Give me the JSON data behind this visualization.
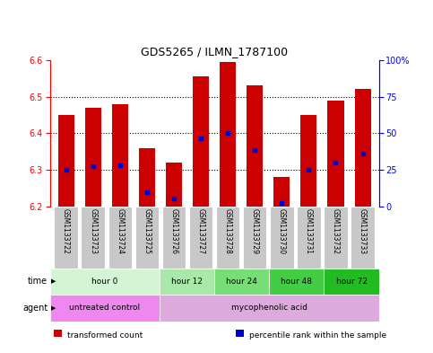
{
  "title": "GDS5265 / ILMN_1787100",
  "samples": [
    "GSM1133722",
    "GSM1133723",
    "GSM1133724",
    "GSM1133725",
    "GSM1133726",
    "GSM1133727",
    "GSM1133728",
    "GSM1133729",
    "GSM1133730",
    "GSM1133731",
    "GSM1133732",
    "GSM1133733"
  ],
  "bar_tops": [
    6.45,
    6.47,
    6.48,
    6.36,
    6.32,
    6.555,
    6.595,
    6.53,
    6.28,
    6.45,
    6.49,
    6.52
  ],
  "bar_base": 6.2,
  "blue_dots": [
    6.3,
    6.31,
    6.312,
    6.24,
    6.222,
    6.385,
    6.4,
    6.355,
    6.21,
    6.3,
    6.32,
    6.345
  ],
  "ylim_left": [
    6.2,
    6.6
  ],
  "ylim_right": [
    0,
    100
  ],
  "yticks_left": [
    6.2,
    6.3,
    6.4,
    6.5,
    6.6
  ],
  "yticks_right": [
    0,
    25,
    50,
    75,
    100
  ],
  "ytick_labels_right": [
    "0",
    "25",
    "50",
    "75",
    "100%"
  ],
  "bar_color": "#cc0000",
  "dot_color": "#0000cc",
  "time_groups": [
    {
      "label": "hour 0",
      "start": 0,
      "end": 4,
      "color": "#d4f5d4"
    },
    {
      "label": "hour 12",
      "start": 4,
      "end": 6,
      "color": "#aae8aa"
    },
    {
      "label": "hour 24",
      "start": 6,
      "end": 8,
      "color": "#77dd77"
    },
    {
      "label": "hour 48",
      "start": 8,
      "end": 10,
      "color": "#44cc44"
    },
    {
      "label": "hour 72",
      "start": 10,
      "end": 12,
      "color": "#22bb22"
    }
  ],
  "agent_groups": [
    {
      "label": "untreated control",
      "start": 0,
      "end": 4,
      "color": "#ee88ee"
    },
    {
      "label": "mycophenolic acid",
      "start": 4,
      "end": 12,
      "color": "#ddaadd"
    }
  ],
  "bg_color": "#ffffff",
  "tick_label_bg": "#c8c8c8",
  "legend_items": [
    {
      "label": "transformed count",
      "color": "#cc0000"
    },
    {
      "label": "percentile rank within the sample",
      "color": "#0000cc"
    }
  ]
}
